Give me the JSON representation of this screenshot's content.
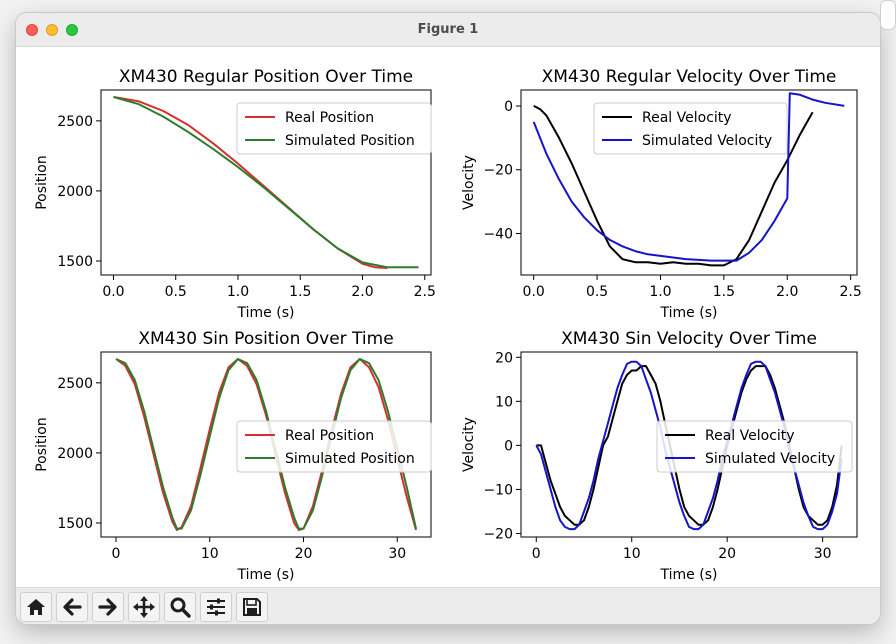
{
  "window": {
    "title": "Figure 1"
  },
  "colors": {
    "real_pos": "#d62f2f",
    "sim_pos": "#2e7d2e",
    "real_vel": "#000000",
    "sim_vel": "#1414c8"
  },
  "toolbar": {
    "items": [
      {
        "icon": "home-icon"
      },
      {
        "icon": "back-arrow-icon"
      },
      {
        "icon": "forward-arrow-icon"
      },
      {
        "icon": "pan-icon"
      },
      {
        "icon": "zoom-icon"
      },
      {
        "icon": "subplots-config-icon"
      },
      {
        "icon": "save-icon"
      }
    ]
  },
  "chart_data": [
    {
      "type": "line",
      "title": "XM430 Regular Position Over Time",
      "xlabel": "Time (s)",
      "ylabel": "Position",
      "xlim": [
        -0.1,
        2.55
      ],
      "ylim": [
        1400,
        2720
      ],
      "xticks": [
        0.0,
        0.5,
        1.0,
        1.5,
        2.0,
        2.5
      ],
      "xtick_labels": [
        "0.0",
        "0.5",
        "1.0",
        "1.5",
        "2.0",
        "2.5"
      ],
      "yticks": [
        1500,
        2000,
        2500
      ],
      "ytick_labels": [
        "1500",
        "2000",
        "2500"
      ],
      "legend": "top-right",
      "series": [
        {
          "name": "Real Position",
          "color": "#d62f2f",
          "x": [
            0.0,
            0.2,
            0.4,
            0.6,
            0.8,
            1.0,
            1.2,
            1.4,
            1.6,
            1.8,
            2.0,
            2.1,
            2.2
          ],
          "y": [
            2670,
            2640,
            2570,
            2470,
            2340,
            2195,
            2040,
            1885,
            1730,
            1590,
            1480,
            1455,
            1450
          ]
        },
        {
          "name": "Simulated Position",
          "color": "#2e7d2e",
          "x": [
            0.0,
            0.2,
            0.4,
            0.6,
            0.8,
            1.0,
            1.2,
            1.4,
            1.6,
            1.8,
            2.0,
            2.2,
            2.45
          ],
          "y": [
            2670,
            2620,
            2530,
            2420,
            2300,
            2170,
            2030,
            1880,
            1730,
            1590,
            1490,
            1455,
            1455
          ]
        }
      ]
    },
    {
      "type": "line",
      "title": "XM430 Regular Velocity Over Time",
      "xlabel": "Time (s)",
      "ylabel": "Velocity",
      "xlim": [
        -0.1,
        2.55
      ],
      "ylim": [
        -53,
        5
      ],
      "xticks": [
        0.0,
        0.5,
        1.0,
        1.5,
        2.0,
        2.5
      ],
      "xtick_labels": [
        "0.0",
        "0.5",
        "1.0",
        "1.5",
        "2.0",
        "2.5"
      ],
      "yticks": [
        -40,
        -20,
        0
      ],
      "ytick_labels": [
        "−40",
        "−20",
        "0"
      ],
      "legend": "top-center",
      "series": [
        {
          "name": "Real Velocity",
          "color": "#000000",
          "x": [
            0.0,
            0.05,
            0.1,
            0.2,
            0.3,
            0.4,
            0.5,
            0.6,
            0.7,
            0.8,
            0.9,
            1.0,
            1.1,
            1.2,
            1.3,
            1.4,
            1.5,
            1.6,
            1.7,
            1.8,
            1.9,
            2.0,
            2.1,
            2.2
          ],
          "y": [
            0,
            -1,
            -3,
            -10,
            -18,
            -27,
            -36,
            -44,
            -48,
            -49,
            -49,
            -49.5,
            -49,
            -49.5,
            -49.5,
            -50,
            -50,
            -48,
            -42,
            -33,
            -24,
            -17,
            -9,
            -2
          ]
        },
        {
          "name": "Simulated Velocity",
          "color": "#1414c8",
          "x": [
            0.0,
            0.1,
            0.2,
            0.3,
            0.4,
            0.5,
            0.6,
            0.7,
            0.8,
            0.9,
            1.0,
            1.2,
            1.4,
            1.6,
            1.7,
            1.8,
            1.9,
            2.0,
            2.02,
            2.1,
            2.2,
            2.3,
            2.45
          ],
          "y": [
            -5,
            -15,
            -23,
            -30,
            -35,
            -39,
            -42,
            -44,
            -45.5,
            -46.5,
            -47,
            -48,
            -48.5,
            -48.5,
            -46,
            -42,
            -36,
            -29,
            4,
            3.5,
            2,
            1,
            0
          ]
        }
      ]
    },
    {
      "type": "line",
      "title": "XM430 Sin Position Over Time",
      "xlabel": "Time (s)",
      "ylabel": "Position",
      "xlim": [
        -1.6,
        33.6
      ],
      "ylim": [
        1400,
        2720
      ],
      "xticks": [
        0,
        10,
        20,
        30
      ],
      "xtick_labels": [
        "0",
        "10",
        "20",
        "30"
      ],
      "yticks": [
        1500,
        2000,
        2500
      ],
      "ytick_labels": [
        "1500",
        "2000",
        "2500"
      ],
      "legend": "center-right",
      "series": [
        {
          "name": "Real Position",
          "color": "#d62f2f",
          "x": [
            0,
            1,
            2,
            3,
            4,
            5,
            6,
            6.5,
            7,
            8,
            9,
            10,
            11,
            12,
            13,
            14,
            15,
            16,
            17,
            18,
            19,
            19.5,
            20,
            21,
            22,
            23,
            24,
            25,
            26,
            27,
            28,
            29,
            30,
            31,
            32
          ],
          "y": [
            2670,
            2620,
            2490,
            2260,
            1990,
            1720,
            1510,
            1450,
            1470,
            1620,
            1890,
            2170,
            2430,
            2610,
            2670,
            2620,
            2490,
            2270,
            1990,
            1720,
            1500,
            1450,
            1460,
            1620,
            1880,
            2160,
            2420,
            2610,
            2670,
            2610,
            2470,
            2240,
            1960,
            1690,
            1450
          ]
        },
        {
          "name": "Simulated Position",
          "color": "#2e7d2e",
          "x": [
            0,
            1,
            2,
            3,
            4,
            5,
            6,
            6.5,
            7,
            8,
            9,
            10,
            11,
            12,
            13,
            14,
            15,
            16,
            17,
            18,
            19,
            19.5,
            20,
            21,
            22,
            23,
            24,
            25,
            26,
            27,
            28,
            29,
            30,
            31,
            32
          ],
          "y": [
            2670,
            2640,
            2520,
            2300,
            2030,
            1760,
            1540,
            1460,
            1460,
            1590,
            1840,
            2120,
            2390,
            2590,
            2670,
            2640,
            2520,
            2300,
            2030,
            1760,
            1540,
            1460,
            1460,
            1590,
            1840,
            2120,
            2390,
            2590,
            2670,
            2640,
            2520,
            2300,
            2030,
            1760,
            1460
          ]
        }
      ]
    },
    {
      "type": "line",
      "title": "XM430 Sin Velocity Over Time",
      "xlabel": "Time (s)",
      "ylabel": "Velocity",
      "xlim": [
        -1.6,
        33.6
      ],
      "ylim": [
        -20.8,
        21.2
      ],
      "xticks": [
        0,
        10,
        20,
        30
      ],
      "xtick_labels": [
        "0",
        "10",
        "20",
        "30"
      ],
      "yticks": [
        -20,
        -10,
        0,
        10,
        20
      ],
      "ytick_labels": [
        "−20",
        "−10",
        "0",
        "10",
        "20"
      ],
      "legend": "center-right",
      "series": [
        {
          "name": "Real Velocity",
          "color": "#000000",
          "x": [
            0,
            0.5,
            1,
            1.5,
            2,
            2.5,
            3,
            3.5,
            4,
            4.5,
            5,
            5.5,
            6,
            6.5,
            7,
            7.5,
            8,
            8.5,
            9,
            9.5,
            10,
            10.5,
            11,
            11.5,
            12,
            12.5,
            13,
            13.5,
            14,
            14.5,
            15,
            15.5,
            16,
            16.5,
            17,
            17.5,
            18,
            18.5,
            19,
            19.5,
            20,
            20.5,
            21,
            21.5,
            22,
            22.5,
            23,
            23.5,
            24,
            24.5,
            25,
            25.5,
            26,
            26.5,
            27,
            27.5,
            28,
            28.5,
            29,
            29.5,
            30,
            30.5,
            31,
            31.5,
            32
          ],
          "y": [
            0,
            0,
            -4,
            -8,
            -11,
            -14,
            -16,
            -17,
            -18,
            -18,
            -17,
            -14,
            -10,
            -5,
            0,
            2,
            6,
            10,
            14,
            16,
            17,
            17,
            18,
            18,
            16,
            14,
            10,
            5,
            0,
            -5,
            -10,
            -14,
            -16,
            -17,
            -18,
            -18,
            -17,
            -14,
            -10,
            -5,
            0,
            4,
            8,
            12,
            15,
            17,
            18,
            18,
            18,
            16,
            13,
            9,
            5,
            0,
            -5,
            -10,
            -14,
            -16,
            -17,
            -18,
            -18,
            -17,
            -14,
            -9,
            0
          ]
        },
        {
          "name": "Simulated Velocity",
          "color": "#1414c8",
          "x": [
            0,
            0.5,
            1,
            1.5,
            2,
            2.5,
            3,
            3.5,
            4,
            4.5,
            5,
            5.5,
            6,
            6.5,
            7,
            7.5,
            8,
            8.5,
            9,
            9.5,
            10,
            10.5,
            11,
            11.5,
            12,
            12.5,
            13,
            13.5,
            14,
            14.5,
            15,
            15.5,
            16,
            16.5,
            17,
            17.5,
            18,
            18.5,
            19,
            19.5,
            20,
            20.5,
            21,
            21.5,
            22,
            22.5,
            23,
            23.5,
            24,
            24.5,
            25,
            25.5,
            26,
            26.5,
            27,
            27.5,
            28,
            28.5,
            29,
            29.5,
            30,
            30.5,
            31,
            31.5,
            32
          ],
          "y": [
            0,
            -2,
            -6,
            -10,
            -14,
            -17,
            -18.5,
            -19,
            -19,
            -18,
            -15,
            -12,
            -8,
            -3,
            1,
            5,
            9,
            13,
            16,
            18.5,
            19,
            19,
            18,
            15,
            12,
            8,
            4,
            -1,
            -5,
            -9,
            -13,
            -16,
            -18.5,
            -19,
            -19,
            -18,
            -15,
            -12,
            -8,
            -3,
            1,
            5,
            9,
            13,
            16,
            18.5,
            19,
            19,
            18,
            15,
            12,
            8,
            4,
            -1,
            -5,
            -9,
            -13,
            -16,
            -18.5,
            -19,
            -19,
            -18,
            -15,
            -11,
            -3
          ]
        }
      ]
    }
  ]
}
